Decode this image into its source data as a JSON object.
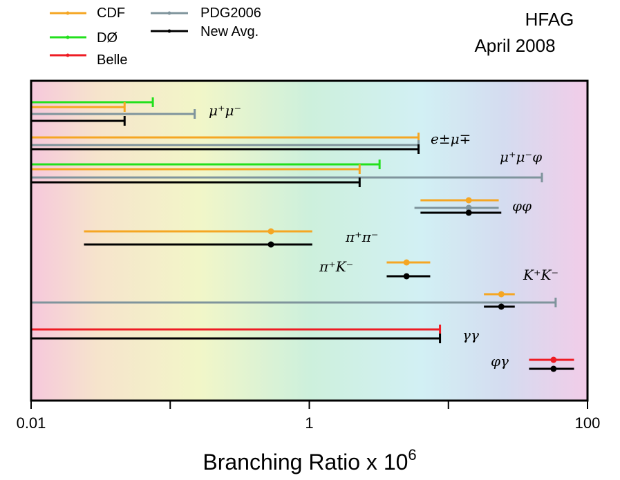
{
  "chart_data": {
    "type": "errorbar",
    "x_scale": "log",
    "xlim": [
      0.01,
      100
    ],
    "xlabel": "Branching Ratio x 10",
    "xlabel_exponent": "6",
    "x_ticks": [
      {
        "value": 0.01,
        "label": "0.01"
      },
      {
        "value": 1,
        "label": "1"
      },
      {
        "value": 100,
        "label": "100"
      }
    ],
    "header_lines": [
      "HFAG",
      "April 2008"
    ],
    "legend": [
      {
        "name": "CDF",
        "color": "#f5a623"
      },
      {
        "name": "DØ",
        "color": "#22e01c"
      },
      {
        "name": "Belle",
        "color": "#ee1c24"
      },
      {
        "name": "PDG2006",
        "color": "#7f949c"
      },
      {
        "name": "New Avg.",
        "color": "#000000"
      }
    ],
    "series_colors": {
      "CDF": "#f5a623",
      "D0": "#22e01c",
      "Belle": "#ee1c24",
      "PDG": "#7f949c",
      "Avg": "#000000"
    },
    "decays": [
      {
        "label": "μ⁺μ⁻",
        "entries": [
          {
            "series": "D0",
            "kind": "limit",
            "value": 0.075
          },
          {
            "series": "CDF",
            "kind": "limit",
            "value": 0.047
          },
          {
            "series": "PDG",
            "kind": "limit",
            "value": 0.15
          },
          {
            "series": "Avg",
            "kind": "limit",
            "value": 0.047
          }
        ]
      },
      {
        "label": "e±μ∓",
        "entries": [
          {
            "series": "CDF",
            "kind": "limit",
            "value": 6.1
          },
          {
            "series": "PDG",
            "kind": "limit",
            "value": 6.1
          },
          {
            "series": "Avg",
            "kind": "limit",
            "value": 6.1
          }
        ]
      },
      {
        "label": "μ⁺μ⁻φ",
        "entries": [
          {
            "series": "D0",
            "kind": "limit",
            "value": 3.2
          },
          {
            "series": "CDF",
            "kind": "limit",
            "value": 2.3
          },
          {
            "series": "PDG",
            "kind": "limit",
            "value": 47
          },
          {
            "series": "Avg",
            "kind": "limit",
            "value": 2.3
          }
        ]
      },
      {
        "label": "φφ",
        "entries": [
          {
            "series": "CDF",
            "kind": "measurement",
            "value": 14,
            "low": 6.3,
            "high": 23
          },
          {
            "series": "PDG",
            "kind": "measurement",
            "value": 14,
            "low": 5.7,
            "high": 23
          },
          {
            "series": "Avg",
            "kind": "measurement",
            "value": 14,
            "low": 6.3,
            "high": 24
          }
        ]
      },
      {
        "label": "π⁺π⁻",
        "entries": [
          {
            "series": "CDF",
            "kind": "measurement",
            "value": 0.53,
            "low": 0.024,
            "high": 1.05
          },
          {
            "series": "Avg",
            "kind": "measurement",
            "value": 0.53,
            "low": 0.024,
            "high": 1.05
          }
        ]
      },
      {
        "label": "π⁺K⁻",
        "entries": [
          {
            "series": "CDF",
            "kind": "measurement",
            "value": 5.0,
            "low": 3.6,
            "high": 7.4
          },
          {
            "series": "Avg",
            "kind": "measurement",
            "value": 5.0,
            "low": 3.6,
            "high": 7.4
          }
        ]
      },
      {
        "label": "K⁺K⁻",
        "entries": [
          {
            "series": "CDF",
            "kind": "measurement",
            "value": 24,
            "low": 18,
            "high": 30
          },
          {
            "series": "PDG",
            "kind": "limit",
            "value": 59
          },
          {
            "series": "Avg",
            "kind": "measurement",
            "value": 24,
            "low": 18,
            "high": 30
          }
        ]
      },
      {
        "label": "γγ",
        "entries": [
          {
            "series": "Belle",
            "kind": "limit",
            "value": 8.7
          },
          {
            "series": "Avg",
            "kind": "limit",
            "value": 8.7
          }
        ]
      },
      {
        "label": "φγ",
        "entries": [
          {
            "series": "Belle",
            "kind": "measurement",
            "value": 57,
            "low": 38,
            "high": 80
          },
          {
            "series": "Avg",
            "kind": "measurement",
            "value": 57,
            "low": 38,
            "high": 80
          }
        ]
      }
    ]
  }
}
